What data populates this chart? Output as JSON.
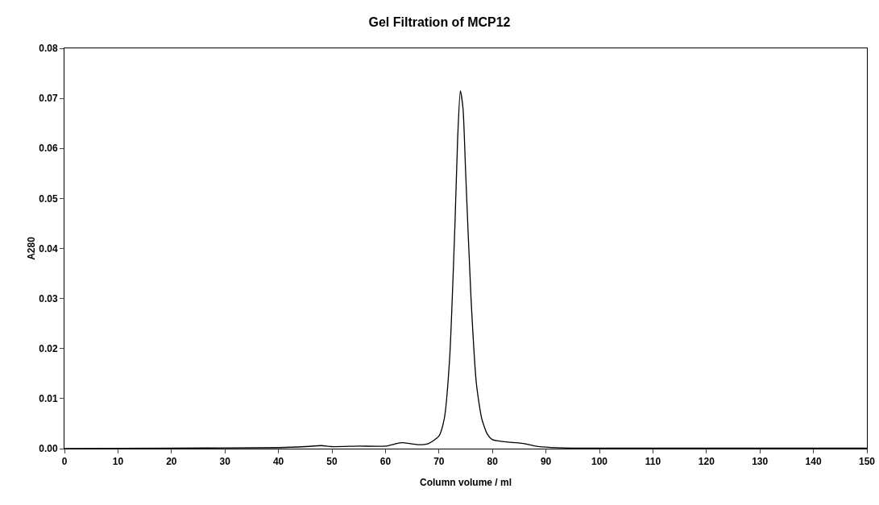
{
  "chart_data": {
    "type": "line",
    "title": "Gel Filtration of MCP12",
    "xlabel": "Column volume / ml",
    "ylabel": "A280",
    "x": [
      0,
      20,
      40,
      45,
      48,
      50,
      55,
      60,
      63,
      66,
      68,
      70,
      71,
      72,
      73,
      73.5,
      74,
      74.5,
      75,
      76,
      77,
      78,
      79,
      80,
      83,
      86,
      88,
      90,
      95,
      120,
      150
    ],
    "series": [
      {
        "color": "#000000",
        "values": [
          0,
          0.0001,
          0.0002,
          0.0004,
          0.0006,
          0.0004,
          0.0005,
          0.0005,
          0.0012,
          0.0008,
          0.001,
          0.0025,
          0.006,
          0.018,
          0.045,
          0.062,
          0.0715,
          0.068,
          0.055,
          0.03,
          0.013,
          0.006,
          0.003,
          0.0018,
          0.0013,
          0.001,
          0.0005,
          0.0003,
          0.0001,
          0.0001,
          0.0001
        ]
      }
    ],
    "xlim": [
      0,
      150
    ],
    "xticks": [
      0,
      10,
      20,
      30,
      40,
      50,
      60,
      70,
      80,
      90,
      100,
      110,
      120,
      130,
      140,
      150
    ],
    "ylim": [
      0,
      0.08
    ],
    "yticks": [
      {
        "value": 0,
        "label": "0.00"
      },
      {
        "value": 0.01,
        "label": "0.01"
      },
      {
        "value": 0.02,
        "label": "0.02"
      },
      {
        "value": 0.03,
        "label": "0.03"
      },
      {
        "value": 0.04,
        "label": "0.04"
      },
      {
        "value": 0.05,
        "label": "0.05"
      },
      {
        "value": 0.06,
        "label": "0.06"
      },
      {
        "value": 0.07,
        "label": "0.07"
      },
      {
        "value": 0.08,
        "label": "0.08"
      }
    ],
    "grid": false,
    "legend": false,
    "marker": "none",
    "line_style": "solid"
  }
}
